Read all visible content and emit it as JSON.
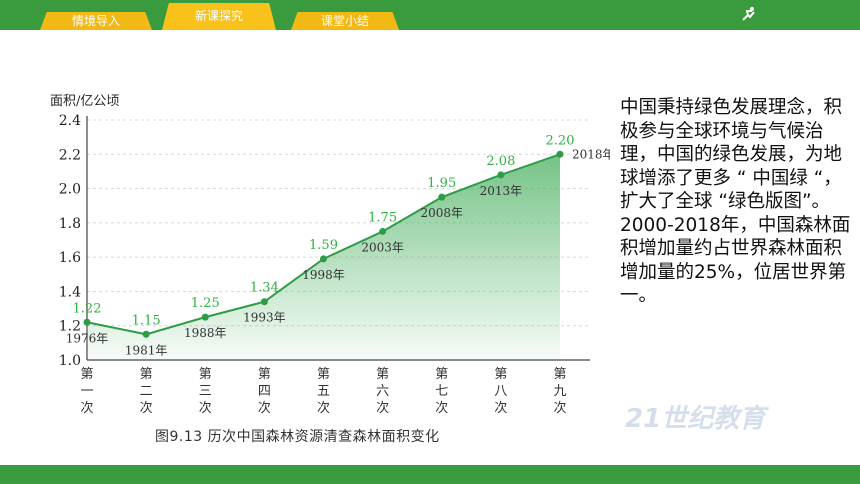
{
  "nav": {
    "tabs": [
      {
        "label": "情境导入"
      },
      {
        "label": "新课探究"
      },
      {
        "label": "课堂小结"
      }
    ],
    "logo_text": "21世纪教育"
  },
  "side_text": {
    "paragraph1": "中国秉持绿色发展理念，积极参与全球环境与气候治理，中国的绿色发展，为地球增添了更多 “ 中国绿 “，扩大了全球 “绿色版图”。",
    "paragraph2": "2000-2018年，中国森林面积增加量约占世界森林面积增加量的25%，位居世界第一。"
  },
  "colors": {
    "top_bar": "#3a9a3e",
    "tab": "#f2b814",
    "series_line": "#2e9b47",
    "area_fill": "#5cb870"
  },
  "chart_data": {
    "type": "area",
    "title": "图9.13  历次中国森林资源清查森林面积变化",
    "ylabel": "面积/亿公顷",
    "ylim": [
      1.0,
      2.4
    ],
    "yticks": [
      "1.0",
      "1.2",
      "1.4",
      "1.6",
      "1.8",
      "2.0",
      "2.2",
      "2.4"
    ],
    "categories": [
      "第一次",
      "第二次",
      "第三次",
      "第四次",
      "第五次",
      "第六次",
      "第七次",
      "第八次",
      "第九次"
    ],
    "years": [
      "1976年",
      "1981年",
      "1988年",
      "1993年",
      "1998年",
      "2003年",
      "2008年",
      "2013年",
      "2018年"
    ],
    "values": [
      1.22,
      1.15,
      1.25,
      1.34,
      1.59,
      1.75,
      1.95,
      2.08,
      2.2
    ],
    "value_labels": [
      "1.22",
      "1.15",
      "1.25",
      "1.34",
      "1.59",
      "1.75",
      "1.95",
      "2.08",
      "2.20"
    ],
    "grid": true
  }
}
